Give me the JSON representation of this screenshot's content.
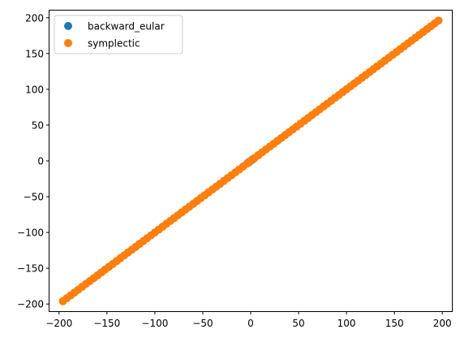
{
  "chart_data": {
    "type": "scatter",
    "title": "",
    "xlabel": "",
    "ylabel": "",
    "xlim": [
      -210,
      210
    ],
    "ylim": [
      -210,
      210
    ],
    "x_ticks": [
      -200,
      -150,
      -100,
      -50,
      0,
      50,
      100,
      150,
      200
    ],
    "y_ticks": [
      -200,
      -150,
      -100,
      -50,
      0,
      50,
      100,
      150,
      200
    ],
    "tick_labels": {
      "x": [
        "−200",
        "−150",
        "−100",
        "−50",
        "0",
        "50",
        "100",
        "150",
        "200"
      ],
      "y": [
        "−200",
        "−150",
        "−100",
        "−50",
        "0",
        "50",
        "100",
        "150",
        "200"
      ]
    },
    "grid": false,
    "legend_position": "top-left",
    "series": [
      {
        "name": "backward_eular",
        "color": "#1f77b4",
        "x": [
          -3,
          -1.5,
          0,
          1.5,
          3
        ],
        "y": [
          -3,
          -1.5,
          0,
          1.5,
          3
        ]
      },
      {
        "name": "symplectic",
        "color": "#ff7f0e",
        "x": [
          -196,
          -192,
          -188,
          -184,
          -180,
          -176,
          -172,
          -168,
          -164,
          -160,
          -156,
          -152,
          -148,
          -144,
          -140,
          -136,
          -132,
          -128,
          -124,
          -120,
          -116,
          -112,
          -108,
          -104,
          -100,
          -96,
          -92,
          -88,
          -84,
          -80,
          -76,
          -72,
          -68,
          -64,
          -60,
          -56,
          -52,
          -48,
          -44,
          -40,
          -36,
          -32,
          -28,
          -24,
          -20,
          -16,
          -12,
          -8,
          -4,
          0,
          4,
          8,
          12,
          16,
          20,
          24,
          28,
          32,
          36,
          40,
          44,
          48,
          52,
          56,
          60,
          64,
          68,
          72,
          76,
          80,
          84,
          88,
          92,
          96,
          100,
          104,
          108,
          112,
          116,
          120,
          124,
          128,
          132,
          136,
          140,
          144,
          148,
          152,
          156,
          160,
          164,
          168,
          172,
          176,
          180,
          184,
          188,
          192,
          196
        ],
        "y": [
          -196,
          -192,
          -188,
          -184,
          -180,
          -176,
          -172,
          -168,
          -164,
          -160,
          -156,
          -152,
          -148,
          -144,
          -140,
          -136,
          -132,
          -128,
          -124,
          -120,
          -116,
          -112,
          -108,
          -104,
          -100,
          -96,
          -92,
          -88,
          -84,
          -80,
          -76,
          -72,
          -68,
          -64,
          -60,
          -56,
          -52,
          -48,
          -44,
          -40,
          -36,
          -32,
          -28,
          -24,
          -20,
          -16,
          -12,
          -8,
          -4,
          0,
          4,
          8,
          12,
          16,
          20,
          24,
          28,
          32,
          36,
          40,
          44,
          48,
          52,
          56,
          60,
          64,
          68,
          72,
          76,
          80,
          84,
          88,
          92,
          96,
          100,
          104,
          108,
          112,
          116,
          120,
          124,
          128,
          132,
          136,
          140,
          144,
          148,
          152,
          156,
          160,
          164,
          168,
          172,
          176,
          180,
          184,
          188,
          192,
          196
        ]
      }
    ]
  }
}
